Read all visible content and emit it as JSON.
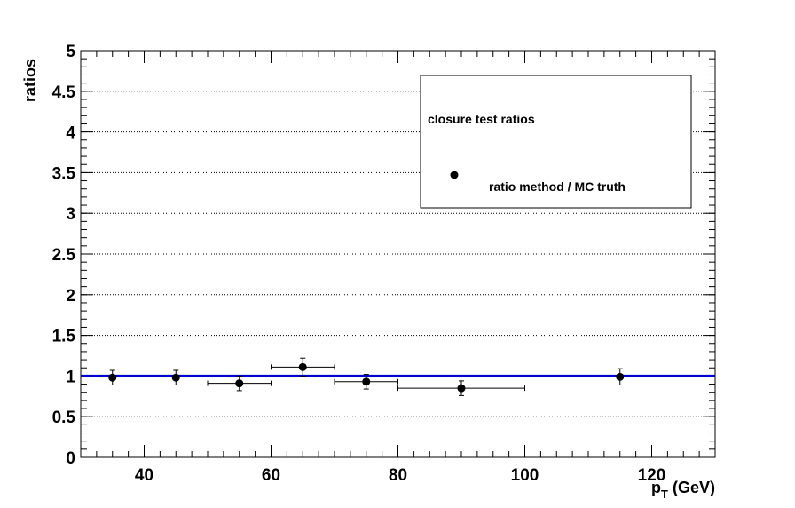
{
  "chart_data": {
    "type": "scatter",
    "xlabel": "p_T (GeV)",
    "xlabel_main": "p",
    "xlabel_sub": "T",
    "xlabel_unit": " (GeV)",
    "ylabel": "ratios",
    "xlim": [
      30,
      130
    ],
    "ylim": [
      0,
      5
    ],
    "x_ticks": [
      40,
      60,
      80,
      100,
      120
    ],
    "y_ticks": [
      0,
      0.5,
      1,
      1.5,
      2,
      2.5,
      3,
      3.5,
      4,
      4.5,
      5
    ],
    "y_tick_labels": [
      "0",
      "0.5",
      "1",
      "1.5",
      "2",
      "2.5",
      "3",
      "3.5",
      "4",
      "4.5",
      "5"
    ],
    "grid": "horizontal-dotted",
    "legend_position": "top-right",
    "legend": {
      "header": "closure test ratios",
      "entries": [
        {
          "label": "ratio method / MC truth",
          "marker": "filled-circle",
          "color": "#000000"
        }
      ]
    },
    "series": [
      {
        "name": "ratio method / MC truth",
        "marker": "filled-circle",
        "color": "#000000",
        "points": [
          {
            "x": 35,
            "y": 0.98,
            "xerr": 0,
            "yerr": 0.09
          },
          {
            "x": 45,
            "y": 0.98,
            "xerr": 0,
            "yerr": 0.09
          },
          {
            "x": 55,
            "y": 0.91,
            "xerr": 5,
            "yerr": 0.09
          },
          {
            "x": 65,
            "y": 1.11,
            "xerr": 5,
            "yerr": 0.11
          },
          {
            "x": 75,
            "y": 0.93,
            "xerr": 5,
            "yerr": 0.09
          },
          {
            "x": 90,
            "y": 0.85,
            "xerr": 10,
            "yerr": 0.09
          },
          {
            "x": 115,
            "y": 0.99,
            "xerr": 0,
            "yerr": 0.1
          }
        ]
      }
    ],
    "reference_line": {
      "y": 1.0,
      "color": "#0000cc"
    }
  }
}
